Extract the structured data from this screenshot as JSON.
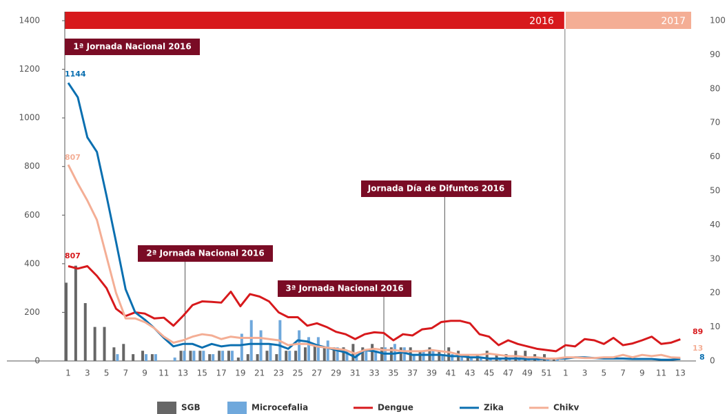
{
  "chart_data": {
    "type": "combo",
    "year_labels": [
      "2016",
      "2017"
    ],
    "categories": [
      "1",
      null,
      "3",
      null,
      "5",
      null,
      "7",
      null,
      "9",
      null,
      "11",
      null,
      "13",
      null,
      "15",
      null,
      "17",
      null,
      "19",
      null,
      "21",
      null,
      "23",
      null,
      "25",
      null,
      "27",
      null,
      "29",
      null,
      "31",
      null,
      "33",
      null,
      "35",
      null,
      "37",
      null,
      "39",
      null,
      "41",
      null,
      "43",
      null,
      "45",
      null,
      "47",
      null,
      "49",
      null,
      "51",
      null,
      "1",
      null,
      "3",
      null,
      "5",
      null,
      "7",
      null,
      "9",
      null,
      "11",
      null,
      "13"
    ],
    "ylim": [
      0,
      1400
    ],
    "yticks": [
      0,
      200,
      400,
      600,
      800,
      1000,
      1200,
      1400
    ],
    "y2lim": [
      0,
      100
    ],
    "y2ticks": [
      0,
      10,
      20,
      30,
      40,
      50,
      60,
      70,
      80,
      90,
      100
    ],
    "series": [
      {
        "name": "SGB",
        "kind": "bar",
        "axis": "y2",
        "color": "#666666",
        "values": [
          23,
          28,
          17,
          10,
          10,
          4,
          5,
          2,
          3,
          2,
          0,
          0,
          3,
          3,
          3,
          2,
          3,
          3,
          1,
          2,
          2,
          3,
          2,
          3,
          3,
          4,
          5,
          4,
          4,
          4,
          5,
          4,
          5,
          4,
          4,
          4,
          4,
          3,
          4,
          3,
          4,
          3,
          2,
          2,
          3,
          2,
          2,
          3,
          3,
          2,
          2,
          1,
          0,
          0,
          0,
          0,
          0,
          0,
          0,
          0,
          0,
          0,
          0,
          0,
          0
        ]
      },
      {
        "name": "Microcefalia",
        "kind": "bar",
        "axis": "y2",
        "color": "#6fa8dc",
        "values": [
          0,
          0,
          0,
          0,
          0,
          2,
          0,
          0,
          2,
          2,
          0,
          1,
          3,
          3,
          3,
          2,
          3,
          3,
          8,
          12,
          9,
          5,
          12,
          3,
          9,
          7,
          7,
          6,
          4,
          3,
          2,
          3,
          3,
          4,
          5,
          4,
          2,
          3,
          3,
          2,
          2,
          2,
          1,
          1,
          1,
          1,
          1,
          1,
          1,
          1,
          1,
          1,
          0,
          0,
          0,
          0,
          0,
          0,
          0,
          0,
          0,
          0,
          0,
          0,
          0
        ]
      },
      {
        "name": "Dengue",
        "kind": "line",
        "color": "#d7191c",
        "values": [
          390,
          380,
          390,
          350,
          300,
          215,
          185,
          200,
          195,
          175,
          178,
          145,
          185,
          230,
          245,
          243,
          240,
          285,
          225,
          275,
          265,
          245,
          200,
          180,
          180,
          145,
          155,
          140,
          120,
          110,
          90,
          110,
          118,
          115,
          85,
          110,
          105,
          130,
          135,
          160,
          165,
          165,
          155,
          110,
          100,
          65,
          85,
          70,
          60,
          50,
          45,
          40,
          65,
          60,
          90,
          85,
          70,
          95,
          65,
          72,
          85,
          100,
          70,
          75,
          89
        ]
      },
      {
        "name": "Zika",
        "kind": "line",
        "color": "#0a6fb0",
        "values": [
          1144,
          1085,
          920,
          860,
          680,
          490,
          295,
          200,
          170,
          135,
          95,
          60,
          70,
          70,
          55,
          70,
          60,
          65,
          65,
          70,
          70,
          70,
          65,
          50,
          85,
          80,
          65,
          55,
          45,
          35,
          15,
          45,
          40,
          30,
          30,
          35,
          25,
          25,
          25,
          25,
          20,
          20,
          15,
          15,
          10,
          10,
          10,
          10,
          8,
          8,
          8,
          10,
          10,
          15,
          15,
          12,
          10,
          10,
          10,
          8,
          8,
          8,
          5,
          5,
          8
        ]
      },
      {
        "name": "Chikv",
        "kind": "line",
        "color": "#f4ae95",
        "values": [
          807,
          730,
          660,
          580,
          430,
          280,
          175,
          175,
          160,
          135,
          100,
          75,
          85,
          100,
          110,
          105,
          90,
          100,
          95,
          95,
          95,
          90,
          85,
          65,
          70,
          70,
          60,
          55,
          50,
          45,
          30,
          45,
          50,
          45,
          45,
          40,
          40,
          40,
          45,
          40,
          35,
          25,
          25,
          25,
          30,
          25,
          20,
          20,
          15,
          15,
          10,
          10,
          15,
          15,
          12,
          12,
          15,
          15,
          25,
          15,
          25,
          20,
          25,
          15,
          13
        ]
      }
    ],
    "annotations": [
      "1ª Jornada Nacional 2016",
      "2ª Jornada Nacional 2016",
      "3ª Jornada Nacional 2016",
      "Jornada Día de Difuntos 2016"
    ],
    "point_labels": [
      "1144",
      "807",
      "807",
      "89",
      "13",
      "8"
    ]
  }
}
